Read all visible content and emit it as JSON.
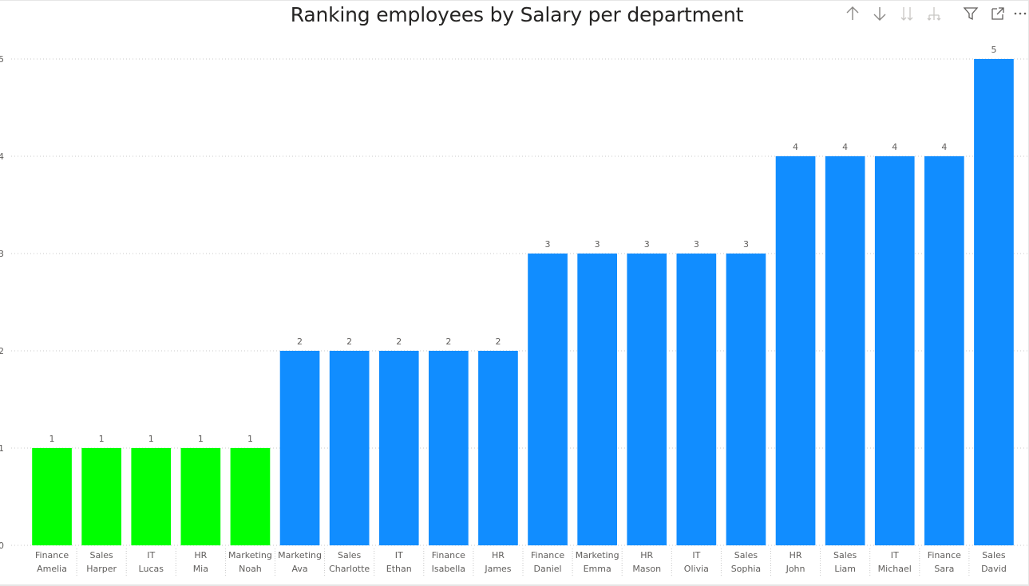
{
  "toolbar": {
    "icons": [
      "arrow-up-icon",
      "arrow-down-icon",
      "double-arrow-down-icon",
      "hierarchy-expand-icon",
      "filter-icon",
      "focus-mode-icon",
      "more-options-icon"
    ]
  },
  "colors": {
    "rank_one": "#00FF00",
    "default": "#118DFF",
    "axis_text": "#605E5C",
    "gridline": "#c8c8c8"
  },
  "chart_data": {
    "type": "bar",
    "title": "Ranking employees by Salary per department",
    "xlabel": "",
    "ylabel": "",
    "ylim": [
      0,
      5
    ],
    "yticks": [
      "0",
      "1",
      "2",
      "3",
      "4",
      "5"
    ],
    "grid": true,
    "categories": [
      {
        "department": "Finance",
        "name": "Amelia"
      },
      {
        "department": "Sales",
        "name": "Harper"
      },
      {
        "department": "IT",
        "name": "Lucas"
      },
      {
        "department": "HR",
        "name": "Mia"
      },
      {
        "department": "Marketing",
        "name": "Noah"
      },
      {
        "department": "Marketing",
        "name": "Ava"
      },
      {
        "department": "Sales",
        "name": "Charlotte"
      },
      {
        "department": "IT",
        "name": "Ethan"
      },
      {
        "department": "Finance",
        "name": "Isabella"
      },
      {
        "department": "HR",
        "name": "James"
      },
      {
        "department": "Finance",
        "name": "Daniel"
      },
      {
        "department": "Marketing",
        "name": "Emma"
      },
      {
        "department": "HR",
        "name": "Mason"
      },
      {
        "department": "IT",
        "name": "Olivia"
      },
      {
        "department": "Sales",
        "name": "Sophia"
      },
      {
        "department": "HR",
        "name": "John"
      },
      {
        "department": "Sales",
        "name": "Liam"
      },
      {
        "department": "IT",
        "name": "Michael"
      },
      {
        "department": "Finance",
        "name": "Sara"
      },
      {
        "department": "Sales",
        "name": "David"
      }
    ],
    "values": [
      1,
      1,
      1,
      1,
      1,
      2,
      2,
      2,
      2,
      2,
      3,
      3,
      3,
      3,
      3,
      4,
      4,
      4,
      4,
      5
    ],
    "data_labels": true
  }
}
